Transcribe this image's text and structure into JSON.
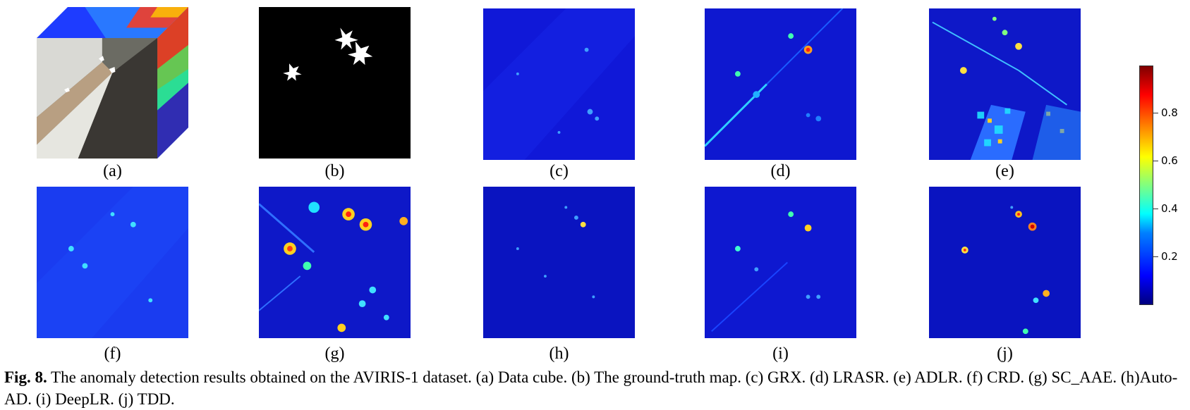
{
  "panels": [
    {
      "label": "(a)",
      "content": "data-cube"
    },
    {
      "label": "(b)",
      "content": "ground-truth-map"
    },
    {
      "label": "(c)",
      "content": "GRX detection map"
    },
    {
      "label": "(d)",
      "content": "LRASR detection map"
    },
    {
      "label": "(e)",
      "content": "ADLR detection map"
    },
    {
      "label": "(f)",
      "content": "CRD detection map"
    },
    {
      "label": "(g)",
      "content": "SC_AAE detection map"
    },
    {
      "label": "(h)",
      "content": "Auto-AD detection map"
    },
    {
      "label": "(i)",
      "content": "DeepLR detection map"
    },
    {
      "label": "(j)",
      "content": "TDD detection map"
    }
  ],
  "colorbar": {
    "min": 0,
    "max": 1,
    "ticks": [
      "0.2",
      "0.4",
      "0.6",
      "0.8"
    ],
    "colormap": "jet"
  },
  "caption": {
    "prefix": "Fig. 8.",
    "text": " The anomaly detection results obtained on the AVIRIS-1 dataset. (a) Data cube. (b) The ground-truth map. (c) GRX. (d) LRASR. (e) ADLR. (f) CRD. (g) SC_AAE. (h)Auto-AD. (i) DeepLR. (j) TDD."
  }
}
